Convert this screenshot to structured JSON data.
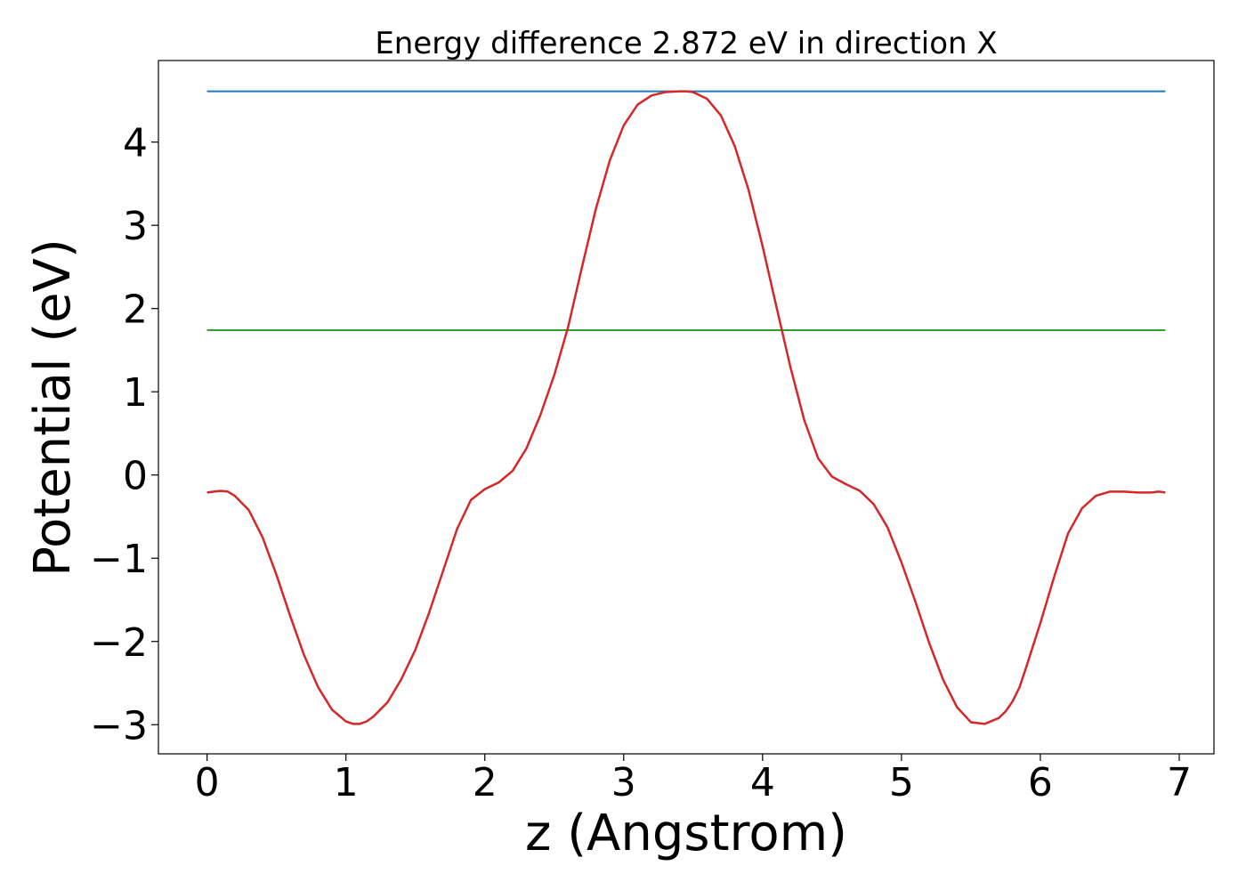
{
  "chart_data": {
    "type": "line",
    "title": "Energy difference 2.872 eV in direction X",
    "xlabel": "z (Angstrom)",
    "ylabel": "Potential (eV)",
    "xlim": [
      -0.35,
      7.25
    ],
    "ylim": [
      -3.35,
      4.98
    ],
    "xticks": [
      0,
      1,
      2,
      3,
      4,
      5,
      6,
      7
    ],
    "xtick_labels": [
      "0",
      "1",
      "2",
      "3",
      "4",
      "5",
      "6",
      "7"
    ],
    "yticks": [
      -3,
      -2,
      -1,
      0,
      1,
      2,
      3,
      4
    ],
    "ytick_labels": [
      "−3",
      "−2",
      "−1",
      "0",
      "1",
      "2",
      "3",
      "4"
    ],
    "grid": false,
    "series": [
      {
        "color": "#1f77b4",
        "x": [
          0,
          6.9
        ],
        "y": [
          4.61,
          4.61
        ]
      },
      {
        "color": "#2ca02c",
        "x": [
          0,
          6.9
        ],
        "y": [
          1.74,
          1.74
        ]
      },
      {
        "color": "#d62728",
        "x": [
          0,
          0.05,
          0.1,
          0.15,
          0.2,
          0.3,
          0.4,
          0.5,
          0.6,
          0.7,
          0.8,
          0.9,
          1.0,
          1.05,
          1.1,
          1.15,
          1.2,
          1.3,
          1.4,
          1.5,
          1.6,
          1.7,
          1.8,
          1.9,
          2.0,
          2.1,
          2.2,
          2.3,
          2.4,
          2.5,
          2.6,
          2.7,
          2.8,
          2.9,
          3.0,
          3.1,
          3.2,
          3.3,
          3.4,
          3.45,
          3.5,
          3.6,
          3.7,
          3.8,
          3.9,
          4.0,
          4.1,
          4.2,
          4.3,
          4.4,
          4.5,
          4.6,
          4.7,
          4.8,
          4.9,
          5.0,
          5.1,
          5.2,
          5.3,
          5.4,
          5.5,
          5.6,
          5.7,
          5.75,
          5.8,
          5.85,
          5.9,
          6.0,
          6.1,
          6.2,
          6.3,
          6.4,
          6.5,
          6.6,
          6.7,
          6.75,
          6.8,
          6.85,
          6.9
        ],
        "y": [
          -0.21,
          -0.2,
          -0.19,
          -0.2,
          -0.25,
          -0.42,
          -0.75,
          -1.2,
          -1.7,
          -2.17,
          -2.55,
          -2.82,
          -2.96,
          -2.99,
          -2.99,
          -2.96,
          -2.9,
          -2.73,
          -2.45,
          -2.1,
          -1.65,
          -1.15,
          -0.65,
          -0.3,
          -0.17,
          -0.09,
          0.05,
          0.32,
          0.72,
          1.2,
          1.78,
          2.5,
          3.2,
          3.78,
          4.2,
          4.45,
          4.56,
          4.6,
          4.61,
          4.61,
          4.6,
          4.52,
          4.32,
          3.95,
          3.42,
          2.75,
          2.02,
          1.3,
          0.66,
          0.2,
          -0.02,
          -0.11,
          -0.19,
          -0.35,
          -0.63,
          -1.05,
          -1.52,
          -2.02,
          -2.46,
          -2.79,
          -2.97,
          -2.99,
          -2.92,
          -2.84,
          -2.72,
          -2.55,
          -2.3,
          -1.78,
          -1.22,
          -0.7,
          -0.4,
          -0.25,
          -0.2,
          -0.2,
          -0.21,
          -0.21,
          -0.21,
          -0.2,
          -0.21
        ]
      }
    ]
  }
}
